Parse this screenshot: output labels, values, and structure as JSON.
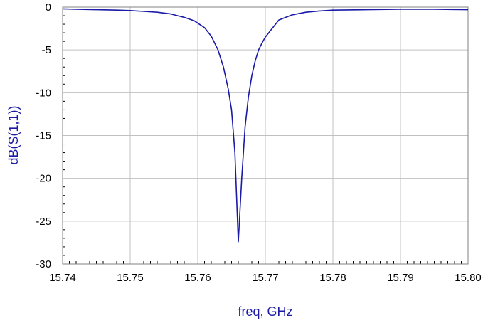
{
  "chart_data": {
    "type": "line",
    "title": "",
    "xlabel": "freq, GHz",
    "ylabel": "dB(S(1,1))",
    "xlim": [
      15.74,
      15.8
    ],
    "ylim": [
      -30,
      0
    ],
    "grid": true,
    "legend": "none",
    "x_ticks": [
      "15.74",
      "15.75",
      "15.76",
      "15.77",
      "15.78",
      "15.79",
      "15.80"
    ],
    "y_ticks": [
      "0",
      "-5",
      "-10",
      "-15",
      "-20",
      "-25",
      "-30"
    ],
    "colors": {
      "series": "#1a1aa6",
      "grid": "#c0c0c0",
      "frame": "#808080"
    },
    "series": [
      {
        "x": [
          15.74,
          15.742,
          15.745,
          15.748,
          15.75,
          15.752,
          15.754,
          15.756,
          15.758,
          15.7595,
          15.761,
          15.762,
          15.763,
          15.7638,
          15.7645,
          15.765,
          15.7655,
          15.766,
          15.7665,
          15.767,
          15.7675,
          15.768,
          15.7685,
          15.769,
          15.7695,
          15.77,
          15.771,
          15.772,
          15.774,
          15.776,
          15.778,
          15.78,
          15.785,
          15.79,
          15.795,
          15.8
        ],
        "y": [
          -0.2,
          -0.25,
          -0.3,
          -0.35,
          -0.4,
          -0.5,
          -0.6,
          -0.8,
          -1.2,
          -1.6,
          -2.4,
          -3.4,
          -5.0,
          -7.0,
          -9.5,
          -12.0,
          -17.0,
          -27.4,
          -20.0,
          -14.0,
          -10.5,
          -8.0,
          -6.3,
          -5.0,
          -4.2,
          -3.5,
          -2.5,
          -1.5,
          -0.9,
          -0.6,
          -0.45,
          -0.35,
          -0.3,
          -0.25,
          -0.25,
          -0.3
        ]
      }
    ]
  }
}
